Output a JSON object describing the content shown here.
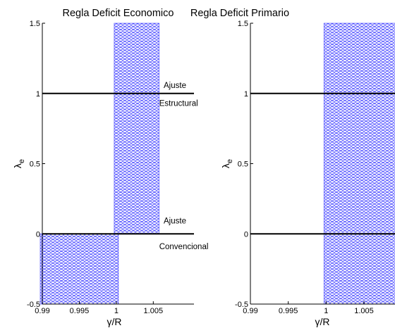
{
  "chart_data": [
    {
      "type": "scatter",
      "title": "Regla Deficit Economico",
      "xlabel": "γ/R",
      "ylabel": "λ",
      "ylabel_sub": "e",
      "xlim": [
        0.99,
        1.0105
      ],
      "ylim": [
        -0.5,
        1.5
      ],
      "xticks": [
        "0.99",
        "0.995",
        "1",
        "1.005"
      ],
      "xtick_values": [
        0.99,
        0.995,
        1,
        1.005
      ],
      "yticks": [
        "-0.5",
        "0",
        "0.5",
        "1",
        "1.5"
      ],
      "ytick_values": [
        -0.5,
        0,
        0.5,
        1,
        1.5
      ],
      "marker": "circle",
      "marker_color": "#3333ff",
      "regions": [
        {
          "x": [
            1.0,
            1.0055
          ],
          "y": [
            0.0,
            1.5
          ]
        },
        {
          "x": [
            0.99,
            1.0
          ],
          "y": [
            -0.5,
            0.0
          ]
        }
      ],
      "lines": [
        {
          "y": 1.0,
          "color": "#000000"
        },
        {
          "y": 0.0,
          "color": "#000000"
        }
      ],
      "annotations": [
        {
          "text": "Ajuste",
          "x": 1.0064,
          "y": 1.06
        },
        {
          "text": "Estructural",
          "x": 1.0058,
          "y": 0.93
        },
        {
          "text": "Ajuste",
          "x": 1.0064,
          "y": 0.095
        },
        {
          "text": "Convencional",
          "x": 1.0058,
          "y": -0.09
        }
      ]
    },
    {
      "type": "scatter",
      "title": "Regla Deficit Primario",
      "xlabel": "γ/R",
      "ylabel": "λ",
      "ylabel_sub": "e",
      "xlim": [
        0.99,
        1.0105
      ],
      "ylim": [
        -0.5,
        1.5
      ],
      "xticks": [
        "0.99",
        "0.995",
        "1",
        "1.005"
      ],
      "xtick_values": [
        0.99,
        0.995,
        1,
        1.005
      ],
      "yticks": [
        "-0.5",
        "0",
        "0.5",
        "1",
        "1.5"
      ],
      "ytick_values": [
        -0.5,
        0,
        0.5,
        1,
        1.5
      ],
      "marker": "circle",
      "marker_color": "#3333ff",
      "regions": [
        {
          "x": [
            1.0,
            1.0105
          ],
          "y": [
            -0.5,
            1.5
          ]
        }
      ],
      "lines": [
        {
          "y": 1.0,
          "color": "#000000"
        },
        {
          "y": 0.0,
          "color": "#000000"
        }
      ],
      "annotations": []
    }
  ]
}
